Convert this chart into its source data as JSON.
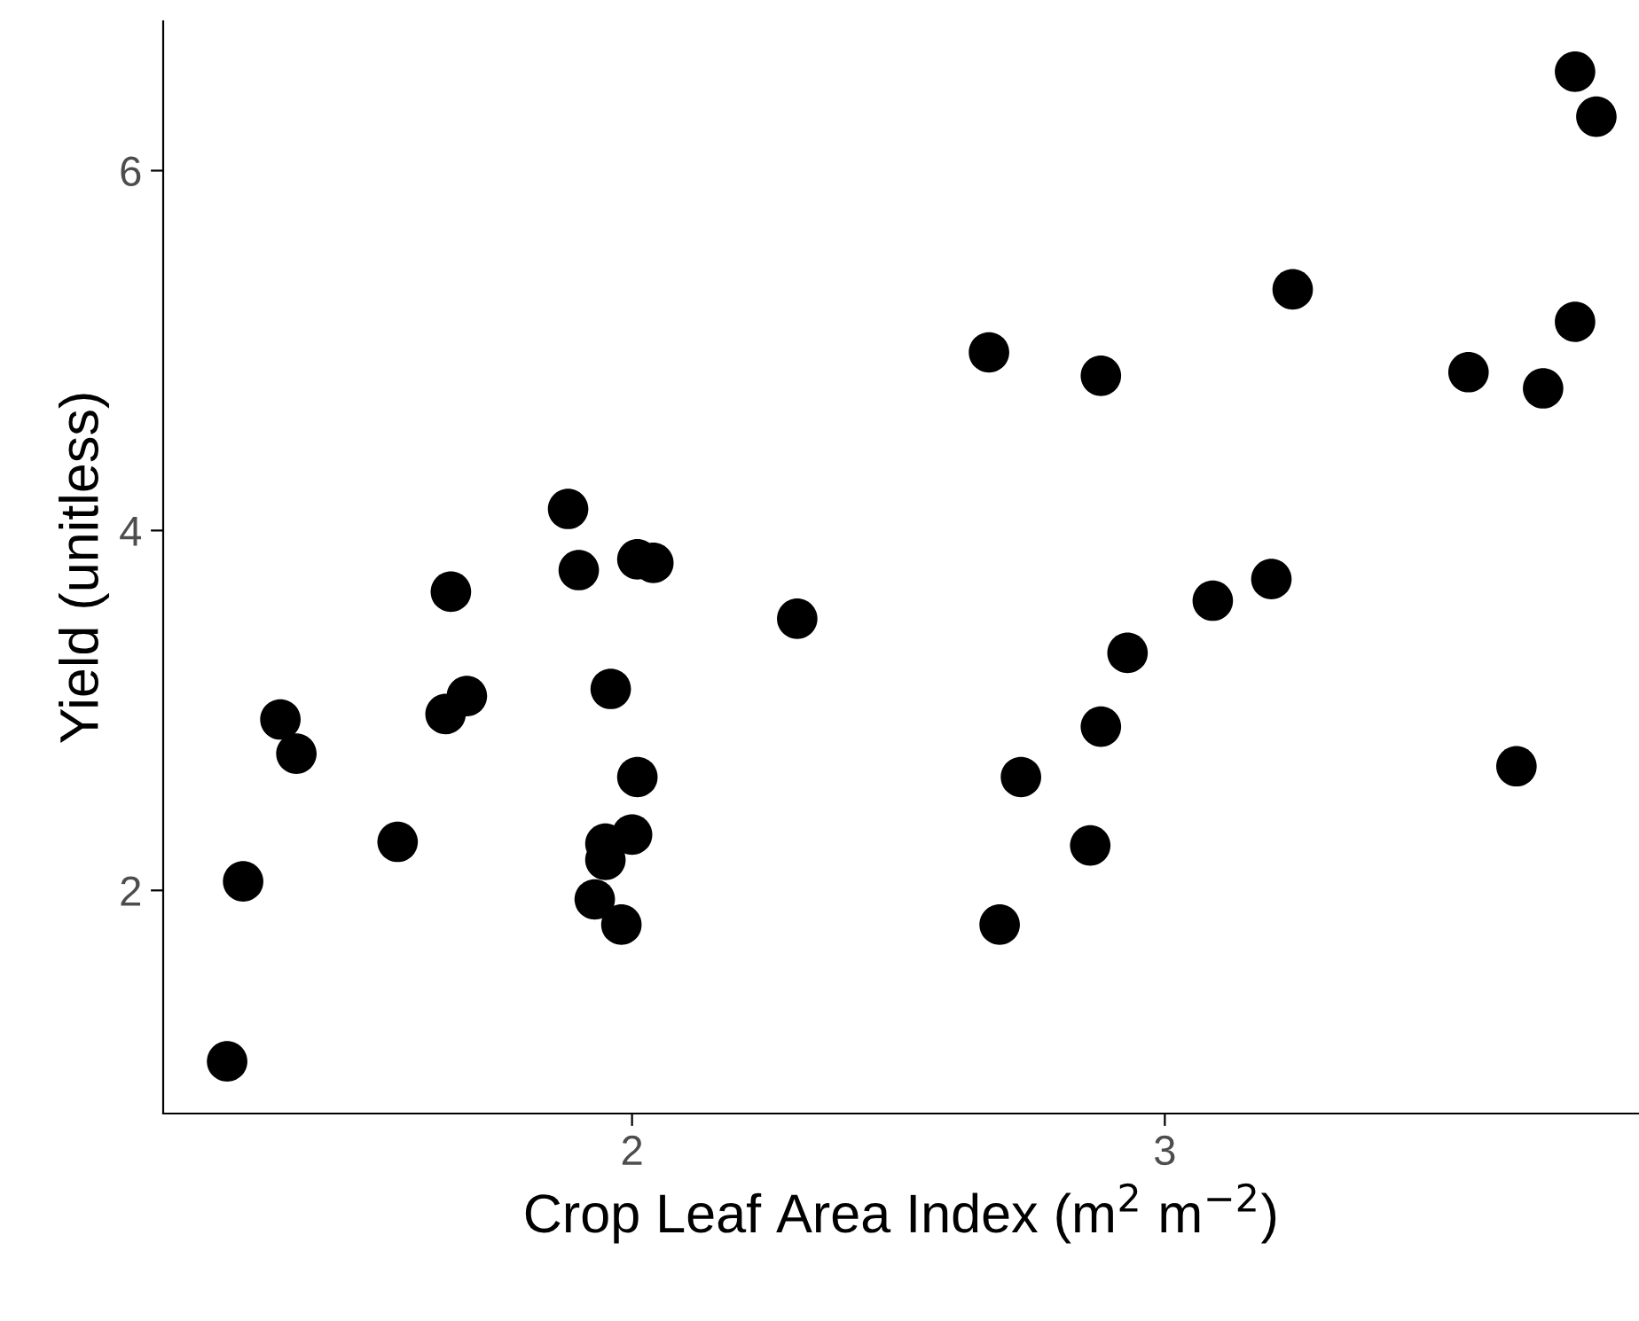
{
  "chart_data": {
    "type": "scatter",
    "xlabel": "Crop Leaf Area Index (m$^{2}$ m$^{−2}$)",
    "ylabel": "Yield (unitless)",
    "xlim": [
      1.12,
      3.89
    ],
    "ylim": [
      0.76,
      6.83
    ],
    "xticks": [
      2,
      3
    ],
    "yticks": [
      2,
      4,
      6
    ],
    "grid": false,
    "legend": false,
    "marker": "circle",
    "series": [
      {
        "color": "#000000",
        "x": [
          1.24,
          1.27,
          1.34,
          1.37,
          1.56,
          1.65,
          1.66,
          1.69,
          1.88,
          1.9,
          1.96,
          1.95,
          1.93,
          1.95,
          1.98,
          2.0,
          2.01,
          2.01,
          2.04,
          2.31,
          2.67,
          2.69,
          2.73,
          2.86,
          2.88,
          2.88,
          2.93,
          3.09,
          3.2,
          3.24,
          3.57,
          3.66,
          3.71,
          3.77,
          3.77,
          3.81
        ],
        "values": [
          1.05,
          2.05,
          2.95,
          2.76,
          2.27,
          2.98,
          3.66,
          3.08,
          4.12,
          3.78,
          3.12,
          2.26,
          1.95,
          2.17,
          1.81,
          2.31,
          2.63,
          3.84,
          3.82,
          3.51,
          4.99,
          1.81,
          2.63,
          2.25,
          4.86,
          2.91,
          3.32,
          3.61,
          3.73,
          5.34,
          4.88,
          2.69,
          4.79,
          5.16,
          6.55,
          6.3
        ]
      }
    ]
  }
}
